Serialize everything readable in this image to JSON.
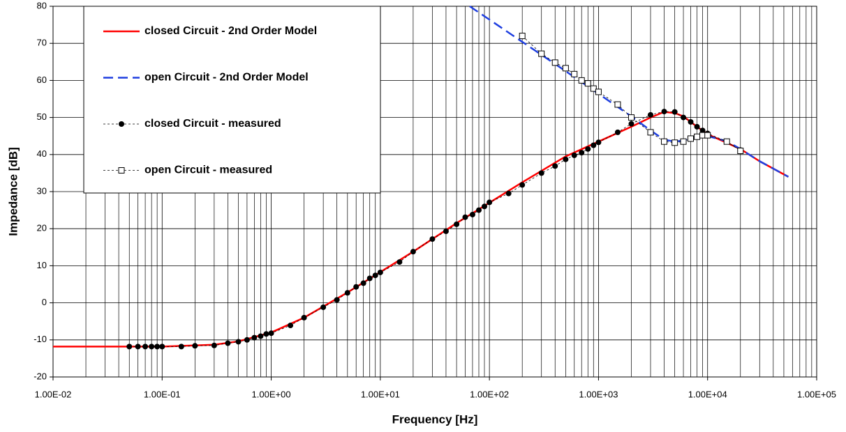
{
  "chart_data": {
    "type": "line",
    "x_label": "Frequency [Hz]",
    "y_label": "Impedance [dB]",
    "x_scale": "log",
    "xlim": [
      0.01,
      100000
    ],
    "xticks": [
      {
        "value": 0.01,
        "label": "1.00E-02"
      },
      {
        "value": 0.1,
        "label": "1.00E-01"
      },
      {
        "value": 1,
        "label": "1.00E+00"
      },
      {
        "value": 10,
        "label": "1.00E+01"
      },
      {
        "value": 100,
        "label": "1.00E+02"
      },
      {
        "value": 1000,
        "label": "1.00E+03"
      },
      {
        "value": 10000,
        "label": "1.00E+04"
      },
      {
        "value": 100000,
        "label": "1.00E+05"
      }
    ],
    "ylim": [
      -20,
      80
    ],
    "yticks": [
      -20,
      -10,
      0,
      10,
      20,
      30,
      40,
      50,
      60,
      70,
      80
    ],
    "grid": true,
    "minor_grid": true,
    "legend": "upper left",
    "series": [
      {
        "name": "closed Circuit - 2nd Order Model",
        "color": "#ff0000",
        "line_style": "solid",
        "marker": "none",
        "x": [
          0.01,
          0.1,
          0.3,
          0.5,
          1,
          2,
          3,
          5,
          10,
          20,
          50,
          100,
          200,
          500,
          1000,
          2000,
          3000,
          4000,
          5000,
          6000,
          8000,
          10000,
          20000,
          30000,
          55000
        ],
        "values": [
          -11.8,
          -11.8,
          -11.3,
          -10.4,
          -8,
          -4,
          -1,
          2.8,
          8.3,
          13.8,
          21.5,
          27,
          32.5,
          39.5,
          43.5,
          47.5,
          50,
          51.5,
          51.2,
          50.3,
          47.5,
          45.5,
          41.5,
          38.2,
          34
        ]
      },
      {
        "name": "open Circuit - 2nd Order Model",
        "color": "#1f3fe0",
        "line_style": "dashed",
        "marker": "none",
        "x": [
          66,
          100,
          200,
          500,
          1000,
          2000,
          3000,
          4000,
          5000,
          6000,
          8000,
          10000,
          15000,
          20000,
          30000,
          55000
        ],
        "values": [
          80,
          76.4,
          70.4,
          62.5,
          56.4,
          50.3,
          46.5,
          44,
          43.5,
          43.8,
          44.8,
          45,
          43.6,
          41.5,
          38.2,
          34
        ]
      },
      {
        "name": "closed Circuit - measured",
        "color": "#000000",
        "line_style": "dotted",
        "marker": "circle",
        "x": [
          0.05,
          0.06,
          0.07,
          0.08,
          0.09,
          0.1,
          0.15,
          0.2,
          0.3,
          0.4,
          0.5,
          0.6,
          0.7,
          0.8,
          0.9,
          1,
          1.5,
          2,
          3,
          4,
          5,
          6,
          7,
          8,
          9,
          10,
          15,
          20,
          30,
          40,
          50,
          60,
          70,
          80,
          90,
          100,
          150,
          200,
          300,
          400,
          500,
          600,
          700,
          800,
          900,
          1000,
          1500,
          2000,
          3000,
          4000,
          5000,
          6000,
          7000,
          8000,
          9000,
          10000,
          15000,
          20000
        ],
        "values": [
          -11.8,
          -11.8,
          -11.8,
          -11.8,
          -11.8,
          -11.8,
          -11.8,
          -11.6,
          -11.5,
          -10.9,
          -10.5,
          -10,
          -9.4,
          -9,
          -8.4,
          -8.2,
          -6.1,
          -4,
          -1.2,
          0.8,
          2.7,
          4.3,
          5.3,
          6.6,
          7.4,
          8.2,
          11,
          13.8,
          17.2,
          19.3,
          21.2,
          23.1,
          23.8,
          25,
          26,
          27.1,
          29.5,
          31.8,
          35,
          36.9,
          38.7,
          39.8,
          40.5,
          41.5,
          42.5,
          43.3,
          46,
          48.3,
          50.7,
          51.6,
          51.5,
          50,
          48.8,
          47.5,
          46.5,
          45.7,
          43.5,
          41.2
        ]
      },
      {
        "name": "open Circuit - measured",
        "color": "#000000",
        "line_style": "dotted",
        "marker": "square",
        "x": [
          200,
          300,
          400,
          500,
          600,
          700,
          800,
          900,
          1000,
          1500,
          2000,
          3000,
          4000,
          5000,
          6000,
          7000,
          8000,
          9000,
          10000,
          15000,
          20000
        ],
        "values": [
          72,
          67.2,
          64.8,
          63.3,
          61.7,
          60,
          59.2,
          57.8,
          56.9,
          53.5,
          50,
          46,
          43.5,
          43.2,
          43.5,
          44.3,
          44.8,
          45.2,
          45.2,
          43.5,
          41
        ]
      }
    ]
  }
}
